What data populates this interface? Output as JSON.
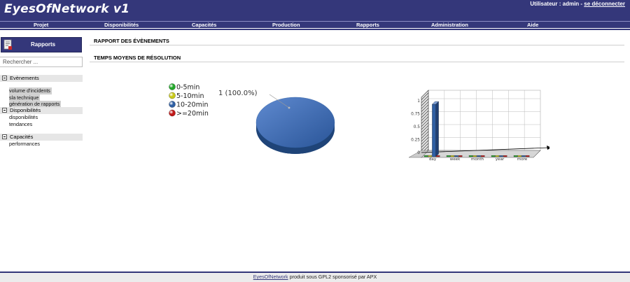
{
  "header": {
    "brand": "EyesOfNetwork v1",
    "user_prefix": "Utilisateur : admin - ",
    "logout_label": "se déconnecter"
  },
  "menu": {
    "items": [
      "Projet",
      "Disponibilités",
      "Capacités",
      "Production",
      "Rapports",
      "Administration",
      "Aide"
    ]
  },
  "sidebar": {
    "module_label": "Rapports",
    "module_icon": "report-icon",
    "search_placeholder": "Rechercher ...",
    "groups": [
      {
        "label": "Evènements",
        "items": [
          "volume d'incidents",
          "sla technique",
          "génération de rapports"
        ]
      },
      {
        "label": "Disponibilités",
        "items": [
          "disponibilités",
          "tendances"
        ]
      },
      {
        "label": "Capacités",
        "items": [
          "performances"
        ]
      }
    ]
  },
  "content": {
    "title": "RAPPORT DES ÉVÈNEMENTS",
    "subtitle": "TEMPS MOYENS DE RÉSOLUTION"
  },
  "chart_data": [
    {
      "type": "pie",
      "legend": [
        "0-5min",
        "5-10min",
        "10-20min",
        ">=20min"
      ],
      "legend_colors": [
        "#22a82a",
        "#c8c81a",
        "#2f5fa3",
        "#c01818"
      ],
      "slices": [
        {
          "label": "0-5min",
          "value": 0
        },
        {
          "label": "5-10min",
          "value": 0
        },
        {
          "label": "10-20min",
          "value": 1
        },
        {
          "label": ">=20min",
          "value": 0
        }
      ],
      "slice_label": "1 (100.0%)"
    },
    {
      "type": "bar",
      "categories": [
        "day",
        "week",
        "month",
        "year",
        "more"
      ],
      "series": [
        {
          "color": "#22a82a",
          "values": [
            0,
            0,
            0,
            0,
            0
          ]
        },
        {
          "color": "#c8c81a",
          "values": [
            0,
            0,
            0,
            0,
            0
          ]
        },
        {
          "color": "#2f5fa3",
          "values": [
            1,
            0,
            0,
            0,
            0
          ]
        },
        {
          "color": "#c01818",
          "values": [
            0,
            0,
            0,
            0,
            0
          ]
        }
      ],
      "y_ticks": [
        "0",
        "0.25",
        "0.5",
        "0.75",
        "1"
      ],
      "ylim": [
        0,
        1
      ]
    }
  ],
  "footer": {
    "link": "EyesOfNetwork",
    "text": " produit sous GPL2 sponsorisé par APX"
  }
}
